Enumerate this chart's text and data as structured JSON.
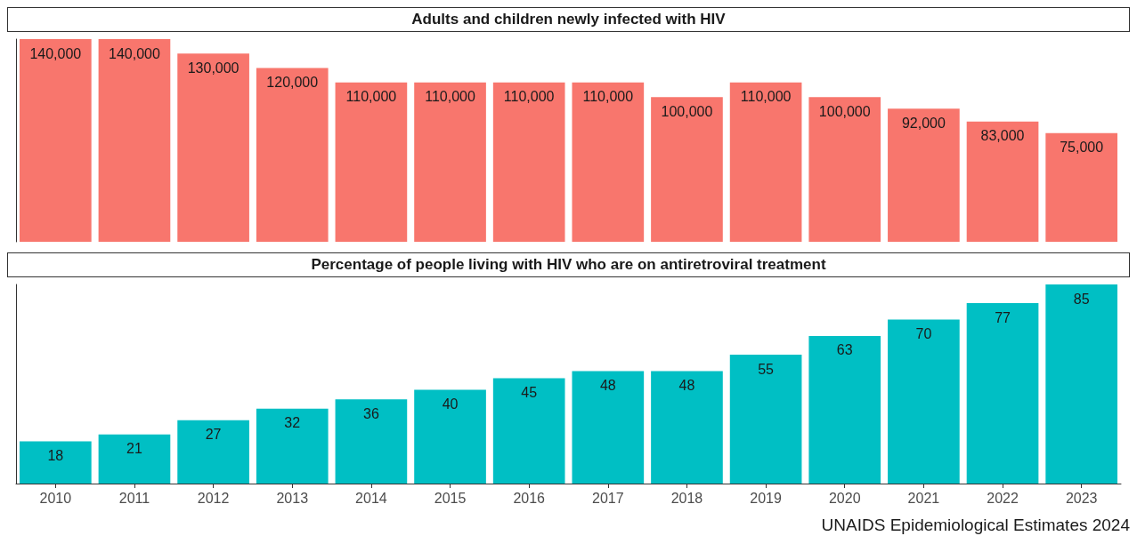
{
  "chart_data": [
    {
      "type": "bar",
      "title": "Adults and children newly infected with HIV",
      "categories": [
        "2010",
        "2011",
        "2012",
        "2013",
        "2014",
        "2015",
        "2016",
        "2017",
        "2018",
        "2019",
        "2020",
        "2021",
        "2022",
        "2023"
      ],
      "values": [
        140000,
        140000,
        130000,
        120000,
        110000,
        110000,
        110000,
        110000,
        100000,
        110000,
        100000,
        92000,
        83000,
        75000
      ],
      "value_labels": [
        "140,000",
        "140,000",
        "130,000",
        "120,000",
        "110,000",
        "110,000",
        "110,000",
        "110,000",
        "100,000",
        "110,000",
        "100,000",
        "92,000",
        "83,000",
        "75,000"
      ],
      "color": "#f8766d",
      "tick_labels": false
    },
    {
      "type": "bar",
      "title": "Percentage of people living with HIV who are on antiretroviral treatment",
      "categories": [
        "2010",
        "2011",
        "2012",
        "2013",
        "2014",
        "2015",
        "2016",
        "2017",
        "2018",
        "2019",
        "2020",
        "2021",
        "2022",
        "2023"
      ],
      "values": [
        18,
        21,
        27,
        32,
        36,
        40,
        45,
        48,
        48,
        55,
        63,
        70,
        77,
        85
      ],
      "color": "#00bfc4",
      "data_labels": true,
      "tick_labels": "x",
      "annotations": [
        "UNAIDS Epidemiological Estimates 2024"
      ]
    }
  ]
}
